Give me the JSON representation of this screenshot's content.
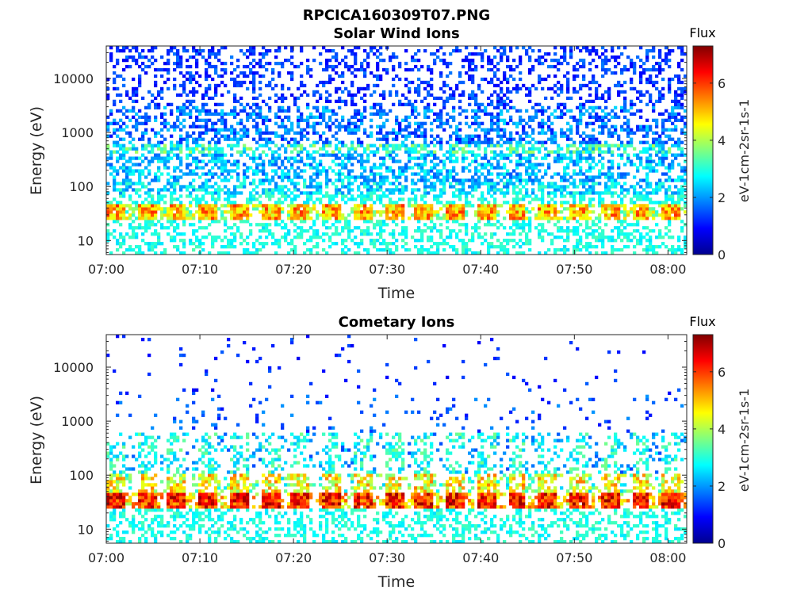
{
  "figure_title": "RPCICA160309T07.PNG",
  "colorbar": {
    "title": "Flux",
    "label": "eV-1cm-2sr-1s-1",
    "range": [
      0,
      7.3
    ],
    "ticks": [
      "0",
      "2",
      "4",
      "6"
    ],
    "colormap": "jet"
  },
  "chart_data": [
    {
      "type": "heatmap",
      "title": "Solar Wind Ions",
      "xlabel": "Time",
      "ylabel": "Energy (eV)",
      "xticks": [
        "07:00",
        "07:10",
        "07:20",
        "07:30",
        "07:40",
        "07:50",
        "08:00"
      ],
      "xlim": [
        "07:00",
        "08:02"
      ],
      "yscale": "log",
      "yticks": [
        "10",
        "100",
        "1000",
        "10000"
      ],
      "ylim": [
        5.5,
        40000
      ],
      "bands": [
        {
          "energy_range": [
            25,
            45
          ],
          "flux_range": [
            3.5,
            5.5
          ],
          "coverage": 0.88,
          "pulse_period_min": 3.3
        },
        {
          "energy_range": [
            45,
            70
          ],
          "flux_range": [
            2.5,
            3.3
          ],
          "coverage": 0.5
        },
        {
          "energy_range": [
            70,
            130
          ],
          "flux_range": [
            1.8,
            3.2
          ],
          "coverage": 0.55
        },
        {
          "energy_range": [
            130,
            400
          ],
          "flux_range": [
            1.5,
            3.0
          ],
          "coverage": 0.5
        },
        {
          "energy_range": [
            400,
            650
          ],
          "flux_range": [
            2.0,
            4.0
          ],
          "coverage": 0.6
        },
        {
          "energy_range": [
            650,
            3000
          ],
          "flux_range": [
            1.0,
            2.5
          ],
          "coverage": 0.45
        },
        {
          "energy_range": [
            3000,
            40000
          ],
          "flux_range": [
            0.8,
            1.8
          ],
          "coverage": 0.3
        },
        {
          "energy_range": [
            5.5,
            25
          ],
          "flux_range": [
            2.5,
            3.3
          ],
          "coverage": 0.4
        }
      ]
    },
    {
      "type": "heatmap",
      "title": "Cometary Ions",
      "xlabel": "Time",
      "ylabel": "Energy (eV)",
      "xticks": [
        "07:00",
        "07:10",
        "07:20",
        "07:30",
        "07:40",
        "07:50",
        "08:00"
      ],
      "xlim": [
        "07:00",
        "08:02"
      ],
      "yscale": "log",
      "yticks": [
        "10",
        "100",
        "1000",
        "10000"
      ],
      "ylim": [
        5.5,
        40000
      ],
      "bands": [
        {
          "energy_range": [
            25,
            45
          ],
          "flux_range": [
            4.5,
            6.6
          ],
          "coverage": 0.9,
          "pulse_period_min": 3.3
        },
        {
          "energy_range": [
            45,
            110
          ],
          "flux_range": [
            3.0,
            5.0
          ],
          "coverage": 0.6,
          "pulse_period_min": 3.3
        },
        {
          "energy_range": [
            110,
            600
          ],
          "flux_range": [
            1.8,
            3.2
          ],
          "coverage": 0.35,
          "pulse_period_min": 3.3
        },
        {
          "energy_range": [
            600,
            3000
          ],
          "flux_range": [
            1.0,
            2.0
          ],
          "coverage": 0.06
        },
        {
          "energy_range": [
            3000,
            40000
          ],
          "flux_range": [
            0.8,
            1.6
          ],
          "coverage": 0.02
        },
        {
          "energy_range": [
            5.5,
            25
          ],
          "flux_range": [
            2.5,
            3.3
          ],
          "coverage": 0.4
        }
      ]
    }
  ]
}
